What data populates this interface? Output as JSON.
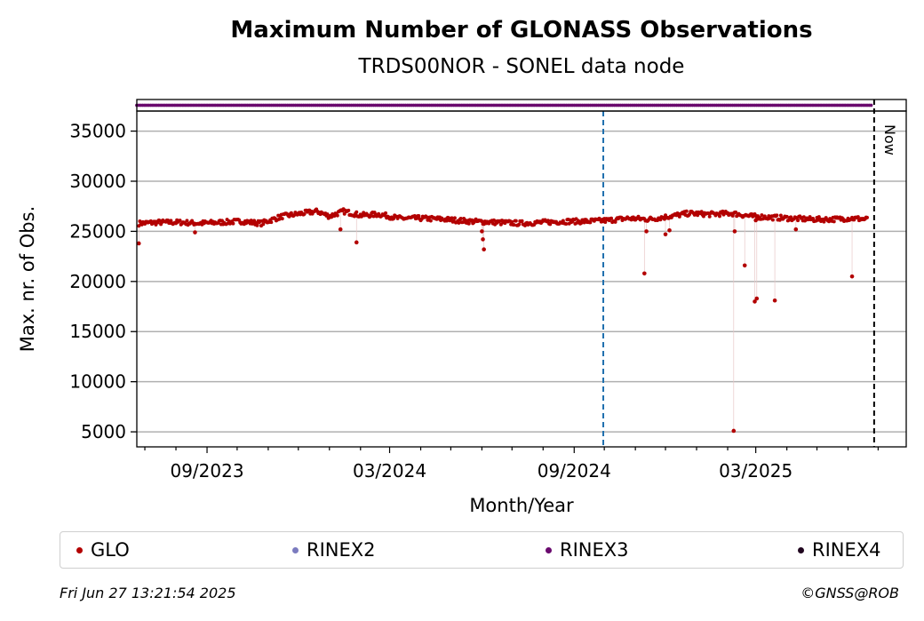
{
  "chart_data": {
    "type": "scatter",
    "title": "Maximum Number of GLONASS Observations",
    "subtitle": "TRDS00NOR - SONEL data node",
    "xlabel": "Month/Year",
    "ylabel": "Max. nr. of Obs.",
    "x_ticks": [
      "09/2023",
      "03/2024",
      "09/2024",
      "03/2025"
    ],
    "y_ticks": [
      5000,
      10000,
      15000,
      20000,
      25000,
      30000,
      35000
    ],
    "xlim": [
      "2023-06-23",
      "2025-07-29"
    ],
    "ylim": [
      3500,
      37000
    ],
    "grid": "horizontal",
    "legend_placement": "bottom",
    "now_marker": {
      "label": "Now",
      "date": "2025-06-27"
    },
    "vertical_marker_date": "2024-09-30",
    "series": [
      {
        "name": "GLO",
        "color": "#b30000",
        "x": [
          "2023-06-25",
          "2023-07-15",
          "2023-08-05",
          "2023-08-25",
          "2023-09-15",
          "2023-10-05",
          "2023-10-25",
          "2023-11-15",
          "2023-12-05",
          "2023-12-20",
          "2024-01-01",
          "2024-01-15",
          "2024-02-01",
          "2024-02-20",
          "2024-03-10",
          "2024-04-01",
          "2024-04-25",
          "2024-05-20",
          "2024-06-15",
          "2024-07-10",
          "2024-08-01",
          "2024-08-25",
          "2024-09-15",
          "2024-10-05",
          "2024-10-25",
          "2024-11-15",
          "2024-12-05",
          "2024-12-25",
          "2025-01-15",
          "2025-02-05",
          "2025-02-25",
          "2025-03-15",
          "2025-04-05",
          "2025-04-25",
          "2025-05-15",
          "2025-06-05",
          "2025-06-20"
        ],
        "values": [
          25800,
          25900,
          25900,
          25800,
          25900,
          26000,
          25800,
          26500,
          26800,
          27000,
          26500,
          27000,
          26600,
          26700,
          26300,
          26300,
          26200,
          26000,
          25900,
          25800,
          25900,
          26000,
          26000,
          26100,
          26300,
          26200,
          26500,
          26800,
          26700,
          26800,
          26500,
          26400,
          26300,
          26200,
          26200,
          26300,
          26200
        ]
      },
      {
        "name": "RINEX2",
        "color": "#7b7bbf"
      },
      {
        "name": "RINEX3",
        "color": "#6a0a6e",
        "x_start": "2023-06-23",
        "x_end": "2025-06-24",
        "y": 37300
      },
      {
        "name": "RINEX4",
        "color": "#20061f"
      }
    ],
    "outliers": [
      {
        "x": "2023-06-25",
        "y": 23800
      },
      {
        "x": "2023-08-20",
        "y": 24900
      },
      {
        "x": "2024-01-12",
        "y": 25200
      },
      {
        "x": "2024-01-28",
        "y": 23900
      },
      {
        "x": "2024-06-01",
        "y": 25000
      },
      {
        "x": "2024-06-02",
        "y": 24200
      },
      {
        "x": "2024-06-03",
        "y": 23200
      },
      {
        "x": "2024-11-10",
        "y": 20800
      },
      {
        "x": "2024-11-12",
        "y": 25000
      },
      {
        "x": "2024-12-01",
        "y": 24700
      },
      {
        "x": "2024-12-05",
        "y": 25100
      },
      {
        "x": "2025-02-07",
        "y": 5100
      },
      {
        "x": "2025-02-08",
        "y": 25000
      },
      {
        "x": "2025-02-18",
        "y": 21600
      },
      {
        "x": "2025-02-28",
        "y": 18000
      },
      {
        "x": "2025-03-01",
        "y": 26100
      },
      {
        "x": "2025-03-02",
        "y": 18300
      },
      {
        "x": "2025-03-20",
        "y": 18100
      },
      {
        "x": "2025-04-10",
        "y": 25200
      },
      {
        "x": "2025-06-05",
        "y": 20500
      }
    ]
  },
  "legend": {
    "glo": "GLO",
    "rinex2": "RINEX2",
    "rinex3": "RINEX3",
    "rinex4": "RINEX4"
  },
  "footer": {
    "timestamp": "Fri Jun 27 13:21:54 2025",
    "credit": "©GNSS@ROB"
  }
}
